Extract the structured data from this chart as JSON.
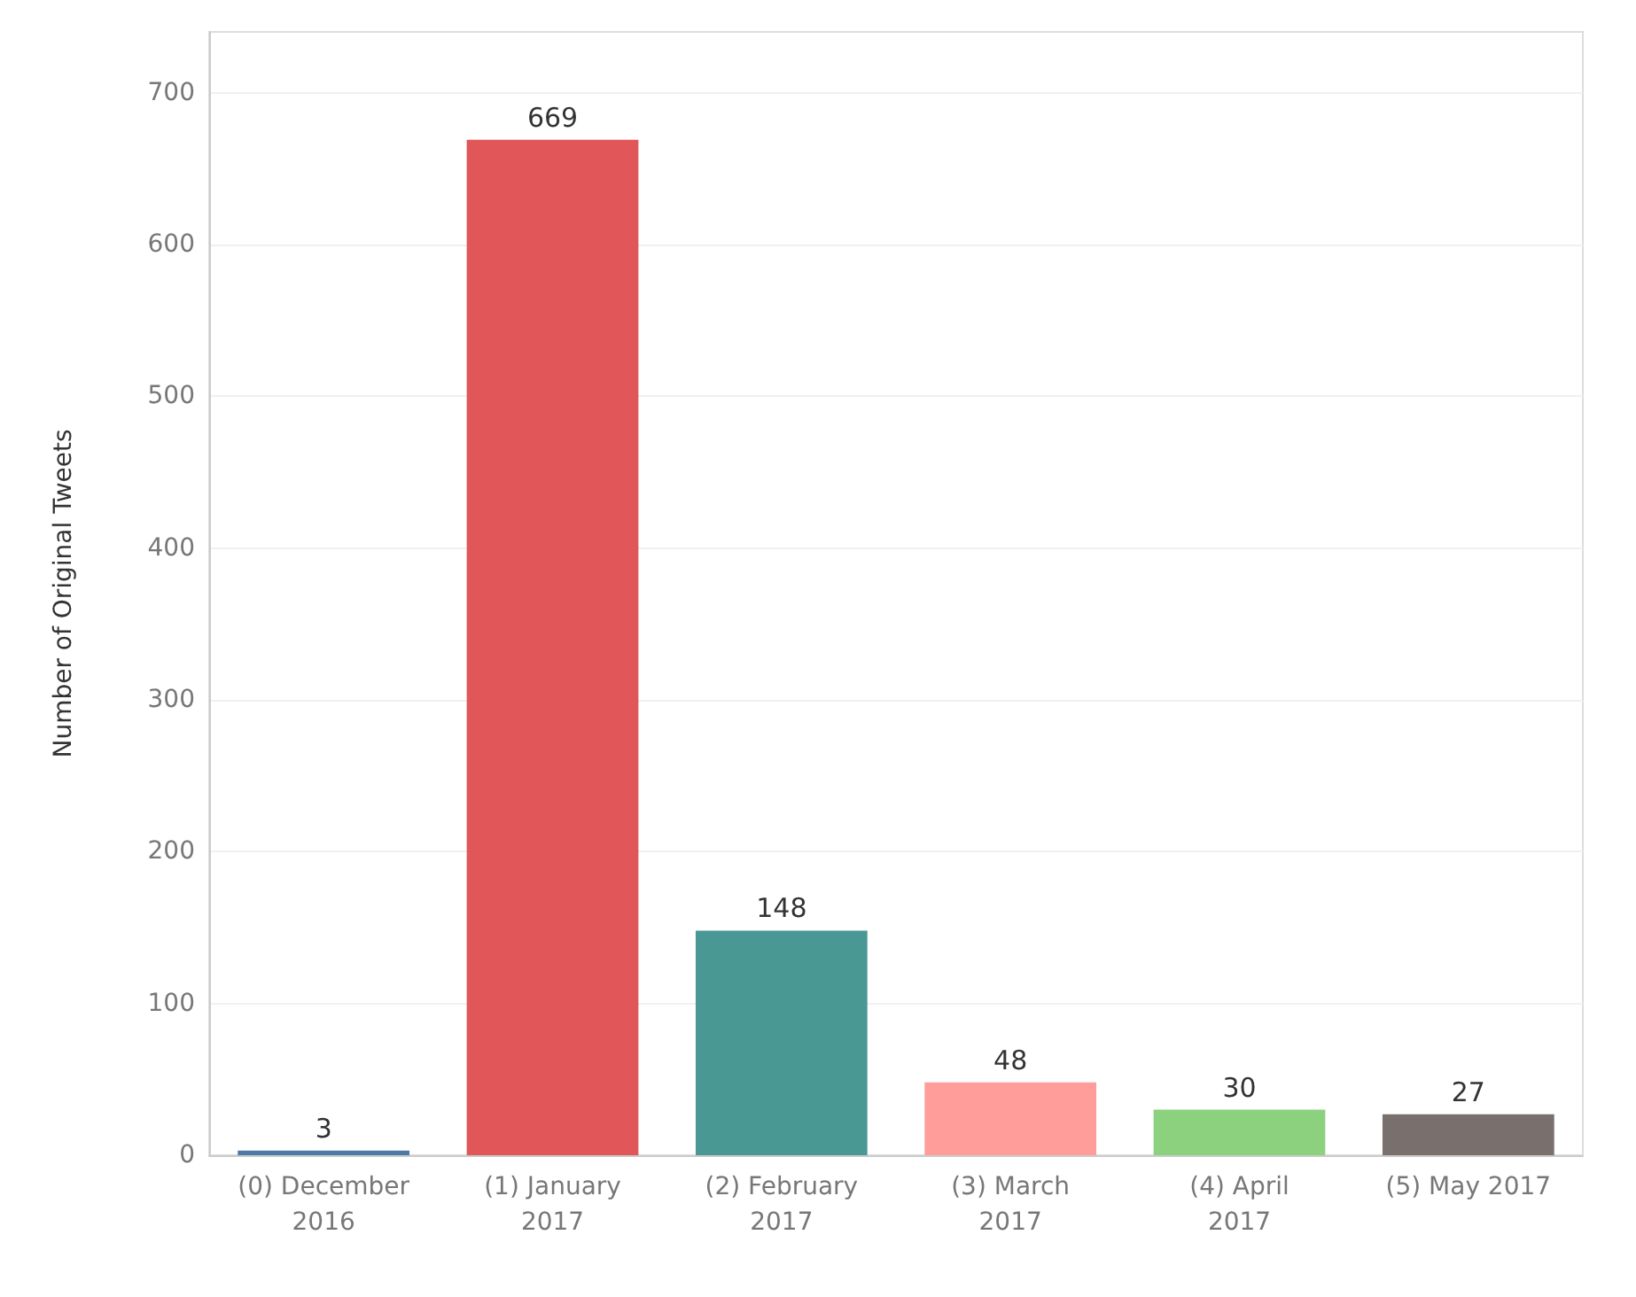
{
  "chart_data": {
    "type": "bar",
    "ylabel": "Number of Original Tweets",
    "categories": [
      "(0) December\n2016",
      "(1) January\n2017",
      "(2) February\n2017",
      "(3) March\n2017",
      "(4) April\n2017",
      "(5) May 2017"
    ],
    "values": [
      3,
      669,
      148,
      48,
      30,
      27
    ],
    "colors": [
      "#4e79a7",
      "#e15759",
      "#499894",
      "#ff9d9a",
      "#8cd17d",
      "#79706e"
    ],
    "ylim": [
      0,
      740
    ],
    "yticks": [
      0,
      100,
      200,
      300,
      400,
      500,
      600,
      700
    ],
    "grid": "y",
    "data_labels": true
  }
}
